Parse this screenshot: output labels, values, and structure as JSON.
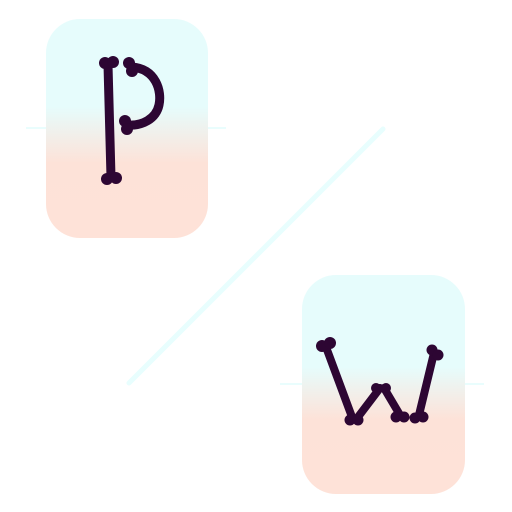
{
  "logo": {
    "letters": [
      "P",
      "W"
    ],
    "colors": {
      "tile_top": "#e6fcfc",
      "tile_bottom": "#fee2d8",
      "letter_ink": "#2d0633",
      "divider": "#e8fefe"
    },
    "icon": "bone-letter-monogram"
  }
}
